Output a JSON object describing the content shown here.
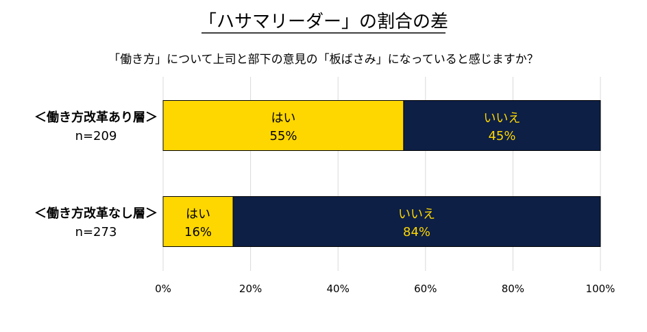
{
  "chart_data": {
    "type": "bar",
    "stacked": true,
    "orientation": "horizontal",
    "title": "「ハサマリーダー」の割合の差",
    "subtitle": "「働き方」について上司と部下の意見の「板ばさみ」になっていると感じますか？",
    "categories": [
      {
        "label": "＜働き方改革あり層＞",
        "n_label": "n=209"
      },
      {
        "label": "＜働き方改革なし層＞",
        "n_label": "n=273"
      }
    ],
    "series": [
      {
        "name": "はい",
        "values": [
          55,
          16
        ],
        "color": "#FFD700",
        "label_color": "#000000"
      },
      {
        "name": "いいえ",
        "values": [
          45,
          84
        ],
        "color": "#0D1F45",
        "label_color": "#FFD700"
      }
    ],
    "value_unit": "%",
    "xlim": [
      0,
      100
    ],
    "xticks": [
      "0%",
      "20%",
      "40%",
      "60%",
      "80%",
      "100%"
    ],
    "grid": true,
    "legend": "none"
  }
}
